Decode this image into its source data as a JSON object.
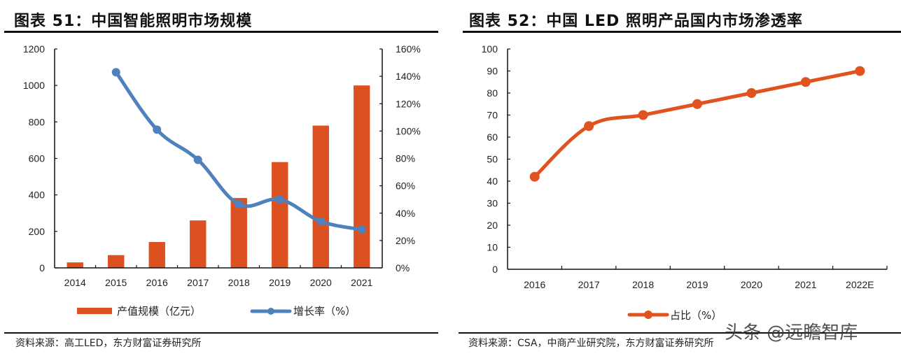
{
  "figures": [
    {
      "title": "图表 51：中国智能照明市场规模",
      "source": "资料来源：高工LED，东方财富证券研究所"
    },
    {
      "title": "图表 52：中国 LED 照明产品国内市场渗透率",
      "source": "资料来源：CSA，中商产业研究院，东方财富证券研究所"
    }
  ],
  "watermark": "头条 @远瞻智库",
  "colors": {
    "bar": "#DD5020",
    "growth_line": "#4F81BD",
    "share_line": "#E0531F",
    "axis": "#111111"
  },
  "chart_data": [
    {
      "type": "bar",
      "title": "中国智能照明市场规模",
      "categories": [
        "2014",
        "2015",
        "2016",
        "2017",
        "2018",
        "2019",
        "2020",
        "2021"
      ],
      "series": [
        {
          "name": "产值规模（亿元）",
          "type": "bar",
          "axis": "left",
          "values": [
            30,
            70,
            142,
            260,
            383,
            580,
            780,
            1000
          ]
        },
        {
          "name": "增长率（%）",
          "type": "line",
          "axis": "right",
          "values": [
            null,
            143,
            101,
            79,
            46.5,
            50,
            34,
            28
          ]
        }
      ],
      "y_left": {
        "ylim": [
          0,
          1200
        ],
        "ticks": [
          "0",
          "200",
          "400",
          "600",
          "800",
          "1000",
          "1200"
        ]
      },
      "y_right": {
        "ylim": [
          0,
          160
        ],
        "ticks": [
          "0%",
          "20%",
          "40%",
          "60%",
          "80%",
          "100%",
          "120%",
          "140%",
          "160%"
        ]
      },
      "xlabel": "",
      "ylabel": "",
      "grid": false,
      "legend_position": "bottom"
    },
    {
      "type": "line",
      "title": "中国LED照明产品国内市场渗透率",
      "categories": [
        "2016",
        "2017",
        "2018",
        "2019",
        "2020",
        "2021",
        "2022E"
      ],
      "series": [
        {
          "name": "占比（%）",
          "values": [
            42,
            65,
            70,
            75,
            80,
            85,
            90
          ]
        }
      ],
      "ylim": [
        0,
        100
      ],
      "y_ticks": [
        "0",
        "10",
        "20",
        "30",
        "40",
        "50",
        "60",
        "70",
        "80",
        "90",
        "100"
      ],
      "xlabel": "",
      "ylabel": "",
      "grid": false,
      "legend_position": "bottom"
    }
  ]
}
